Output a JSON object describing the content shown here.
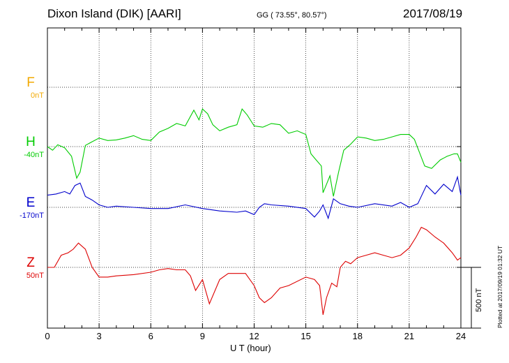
{
  "header": {
    "station": "Dixon Island (DIK)  [AARI]",
    "coords": "GG ( 73.55°,  80.57°)",
    "date": "2017/08/19"
  },
  "footer": {
    "plotted": "Plotted at 2017/09/19 01:32 UT",
    "scale_label": "500 nT"
  },
  "colors": {
    "F": "#f2a900",
    "H": "#00cc00",
    "E": "#0000cc",
    "Z": "#dd0000"
  },
  "chart_data": {
    "type": "line",
    "xlabel": "U T (hour)",
    "xlim": [
      0,
      24
    ],
    "x_ticks": [
      "0",
      "3",
      "6",
      "9",
      "12",
      "15",
      "18",
      "21",
      "24"
    ],
    "scale_bar_nT": 500,
    "components": [
      {
        "name": "F",
        "offset_label": "0nT"
      },
      {
        "name": "H",
        "offset_label": "-40nT"
      },
      {
        "name": "E",
        "offset_label": "-170nT"
      },
      {
        "name": "Z",
        "offset_label": "50nT"
      }
    ],
    "series": [
      {
        "name": "H",
        "color": "#00cc00",
        "base": -40,
        "x": [
          0,
          0.3,
          0.6,
          1.0,
          1.4,
          1.7,
          1.9,
          2.2,
          2.6,
          3.0,
          3.5,
          4.0,
          4.5,
          5.0,
          5.5,
          6.0,
          6.5,
          7.0,
          7.5,
          8.0,
          8.5,
          8.8,
          9.0,
          9.3,
          9.6,
          10.0,
          10.5,
          11.0,
          11.3,
          11.6,
          12.0,
          12.5,
          13.0,
          13.5,
          14.0,
          14.5,
          15.0,
          15.3,
          15.6,
          15.9,
          16.0,
          16.2,
          16.4,
          16.6,
          16.9,
          17.2,
          17.6,
          18.0,
          18.5,
          19.0,
          19.5,
          20.0,
          20.5,
          21.0,
          21.3,
          21.6,
          21.9,
          22.3,
          22.8,
          23.2,
          23.6,
          23.8,
          24.0
        ],
        "y": [
          -40,
          -70,
          -25,
          -50,
          -120,
          -300,
          -250,
          -30,
          0,
          30,
          10,
          15,
          30,
          50,
          20,
          10,
          80,
          110,
          150,
          130,
          260,
          180,
          270,
          230,
          140,
          90,
          120,
          140,
          270,
          220,
          130,
          120,
          150,
          140,
          70,
          90,
          60,
          -100,
          -150,
          -200,
          -420,
          -350,
          -280,
          -450,
          -250,
          -70,
          -20,
          40,
          30,
          10,
          20,
          40,
          60,
          60,
          20,
          -90,
          -200,
          -220,
          -150,
          -120,
          -100,
          -100,
          -170
        ]
      },
      {
        "name": "E",
        "color": "#0000cc",
        "base": -170,
        "x": [
          0,
          0.5,
          1.0,
          1.3,
          1.6,
          1.9,
          2.2,
          2.6,
          3.0,
          3.5,
          4.0,
          5.0,
          6.0,
          7.0,
          8.0,
          9.0,
          10.0,
          11.0,
          11.5,
          12.0,
          12.3,
          12.6,
          13.0,
          14.0,
          15.0,
          15.5,
          15.8,
          16.0,
          16.3,
          16.6,
          17.0,
          17.5,
          18.0,
          19.0,
          20.0,
          20.5,
          21.0,
          21.5,
          22.0,
          22.5,
          23.0,
          23.5,
          23.8,
          24.0
        ],
        "y": [
          -70,
          -60,
          -40,
          -60,
          10,
          30,
          -80,
          -110,
          -150,
          -170,
          -160,
          -170,
          -180,
          -180,
          -150,
          -180,
          -200,
          -210,
          -200,
          -230,
          -170,
          -140,
          -150,
          -160,
          -180,
          -250,
          -200,
          -150,
          -260,
          -100,
          -140,
          -160,
          -170,
          -140,
          -160,
          -130,
          -170,
          -140,
          10,
          -60,
          20,
          -40,
          80,
          -70
        ]
      },
      {
        "name": "Z",
        "color": "#dd0000",
        "base": 50,
        "x": [
          0,
          0.4,
          0.8,
          1.2,
          1.5,
          1.8,
          2.2,
          2.6,
          3.0,
          3.5,
          4.0,
          5.0,
          6.0,
          6.5,
          7.0,
          7.5,
          8.0,
          8.3,
          8.6,
          9.0,
          9.4,
          10.0,
          10.5,
          11.0,
          11.5,
          12.0,
          12.3,
          12.6,
          13.0,
          13.5,
          14.0,
          15.0,
          15.5,
          15.8,
          16.0,
          16.2,
          16.5,
          16.8,
          17.0,
          17.3,
          17.6,
          18.0,
          18.5,
          19.0,
          19.5,
          20.0,
          20.5,
          21.0,
          21.4,
          21.7,
          22.0,
          22.5,
          23.0,
          23.5,
          23.8,
          24.0
        ],
        "y": [
          50,
          50,
          150,
          170,
          200,
          250,
          200,
          50,
          -30,
          -30,
          -20,
          -10,
          10,
          30,
          40,
          30,
          30,
          -20,
          -140,
          -50,
          -250,
          -50,
          0,
          0,
          0,
          -100,
          -200,
          -240,
          -200,
          -120,
          -100,
          -30,
          -50,
          -100,
          -340,
          -200,
          -80,
          -110,
          50,
          100,
          80,
          130,
          150,
          170,
          150,
          130,
          150,
          210,
          300,
          380,
          360,
          300,
          250,
          170,
          110,
          130
        ]
      }
    ]
  }
}
